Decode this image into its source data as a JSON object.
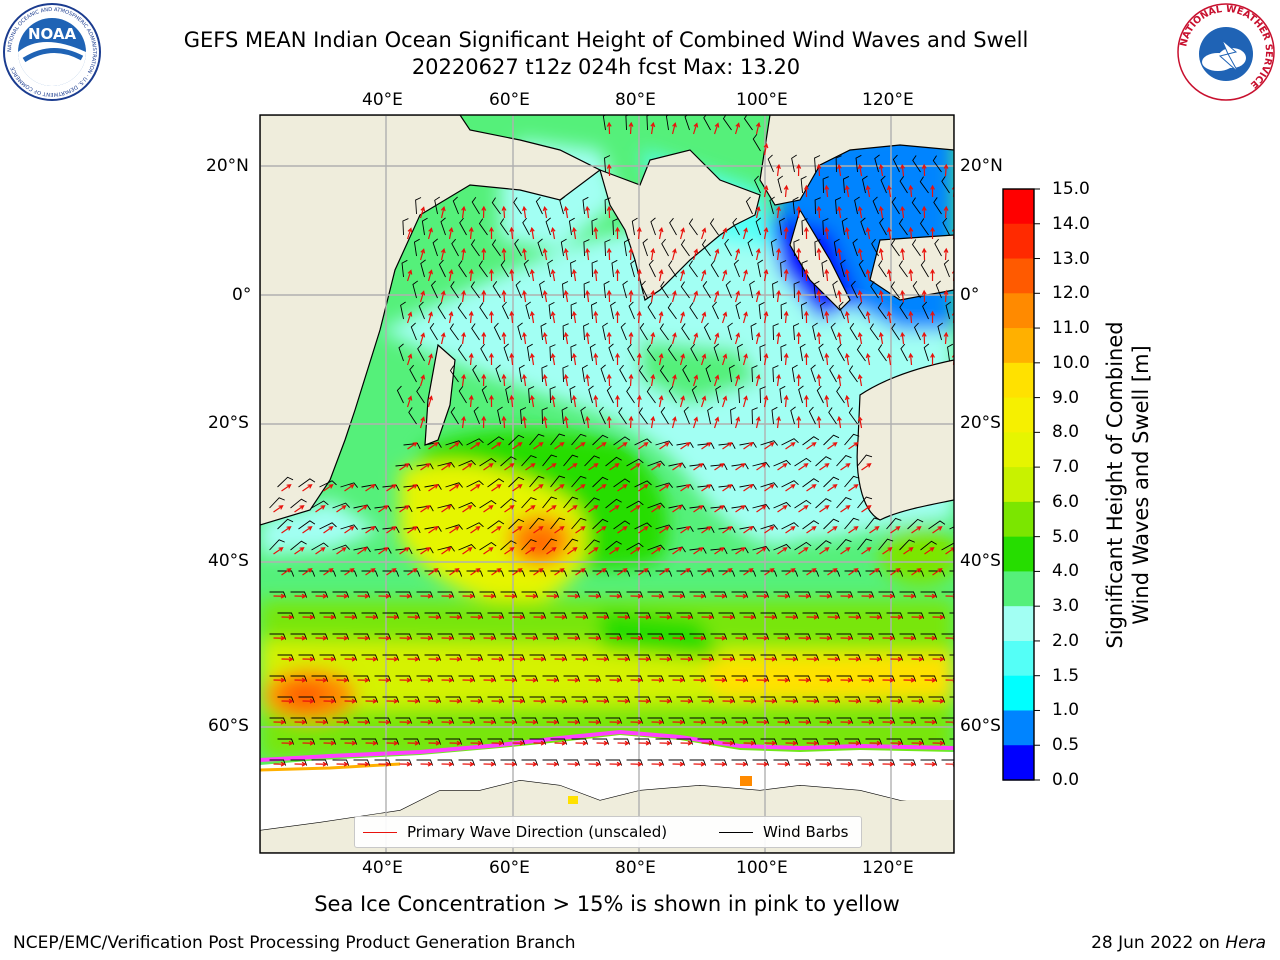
{
  "title": {
    "line1": "GEFS MEAN Indian Ocean Significant Height of Combined Wind Waves and Swell",
    "line2": "20220627 t12z 024h fcst   Max: 13.20"
  },
  "logos": {
    "left_text": "NOAA",
    "left_ring_text": "NATIONAL OCEANIC AND ATMOSPHERIC ADMINISTRATION · U.S. DEPARTMENT OF COMMERCE",
    "right_ring_text": "NATIONAL WEATHER SERVICE"
  },
  "map": {
    "lon_labels": [
      "40°E",
      "60°E",
      "80°E",
      "100°E",
      "120°E"
    ],
    "lat_labels": [
      "20°N",
      "0°",
      "20°S",
      "40°S",
      "60°S"
    ],
    "colors": {
      "land": "#efeddc",
      "ice": "#ffffff",
      "grid": "#b0b0b0",
      "wave_arrow": "#e8120c",
      "wind_barb": "#000000"
    }
  },
  "legend": {
    "primary_wave": "Primary Wave Direction (unscaled)",
    "wind_barbs": "Wind Barbs"
  },
  "colorbar": {
    "label_line1": "Significant Height of Combined",
    "label_line2": "Wind Waves and Swell [m]",
    "ticks": [
      "15.0",
      "14.0",
      "13.0",
      "12.0",
      "11.0",
      "10.0",
      "9.0",
      "8.0",
      "7.0",
      "6.0",
      "5.0",
      "4.0",
      "3.0",
      "2.0",
      "1.5",
      "1.0",
      "0.5",
      "0.0"
    ],
    "colors": [
      "#ff0000",
      "#ff2a00",
      "#ff5a00",
      "#ff8a00",
      "#ffb000",
      "#ffe100",
      "#f6f000",
      "#e6f500",
      "#c8f200",
      "#7be600",
      "#26dd00",
      "#55f07a",
      "#a2fff3",
      "#54fff7",
      "#00ffff",
      "#0084ff",
      "#0000ff"
    ]
  },
  "subcaption": "Sea Ice Concentration > 15% is shown in pink to yellow",
  "footer": {
    "left": "NCEP/EMC/Verification Post Processing Product Generation Branch",
    "right_prefix": "28 Jun 2022 on ",
    "right_host": "Hera"
  }
}
